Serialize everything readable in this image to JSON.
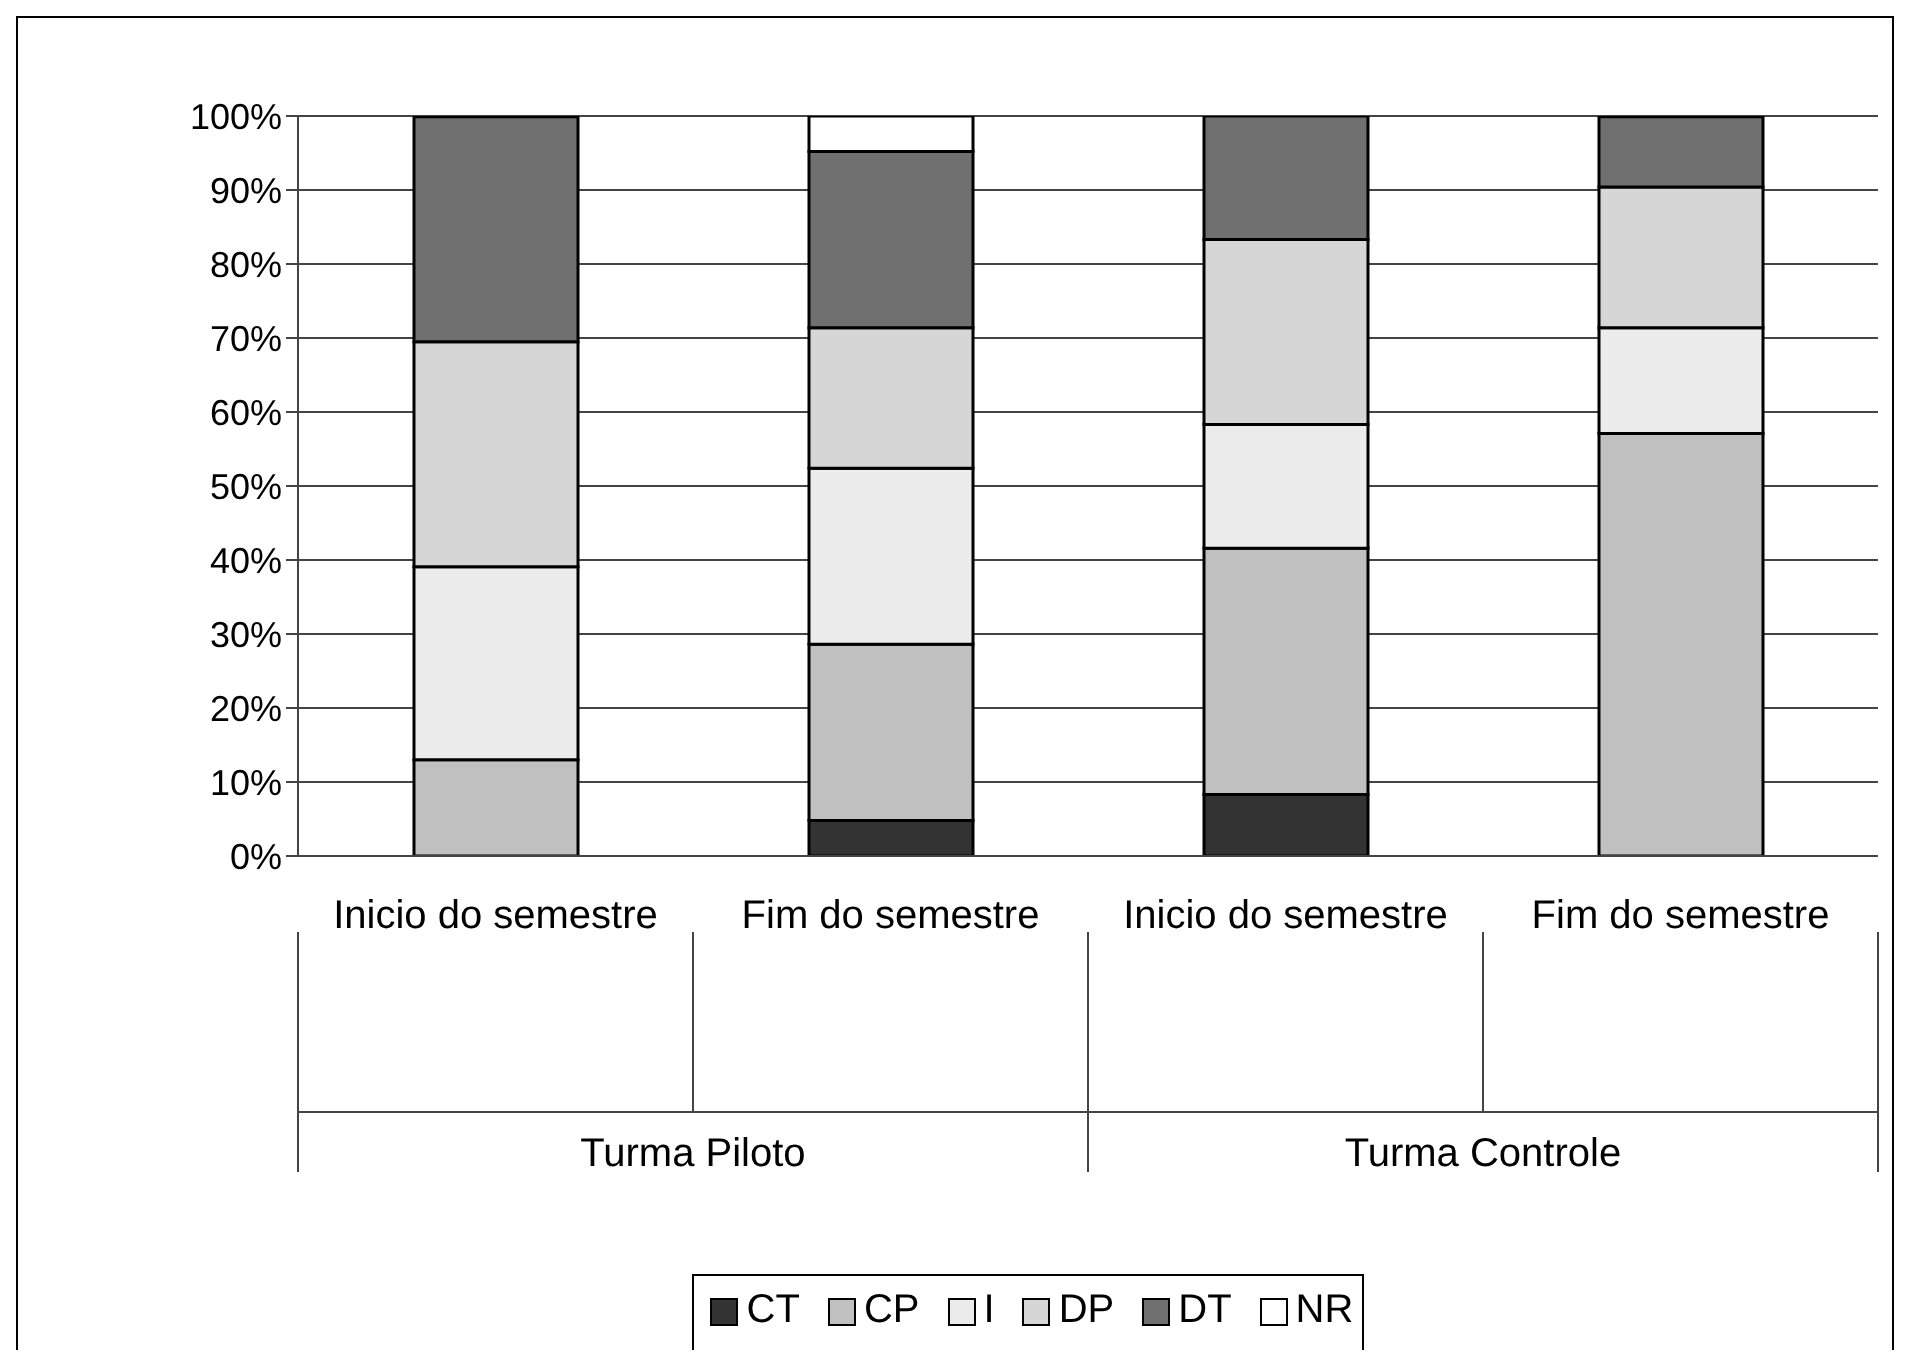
{
  "chart_data": {
    "type": "bar",
    "stacked": true,
    "categories": [
      "Inicio do semestre",
      "Fim do semestre",
      "Inicio do semestre",
      "Fim do semestre"
    ],
    "series": [
      {
        "name": "CT",
        "color": "#333333",
        "values": [
          0,
          4.8,
          8.3,
          0
        ]
      },
      {
        "name": "CP",
        "color": "#c0c0c0",
        "values": [
          13.0,
          23.8,
          33.3,
          57.1
        ]
      },
      {
        "name": "I",
        "color": "#ececec",
        "values": [
          26.1,
          23.8,
          16.7,
          14.3
        ]
      },
      {
        "name": "DP",
        "color": "#d6d6d6",
        "values": [
          30.4,
          19.0,
          25.0,
          19.0
        ]
      },
      {
        "name": "DT",
        "color": "#707070",
        "values": [
          30.4,
          23.8,
          16.7,
          9.5
        ]
      },
      {
        "name": "NR",
        "color": "#ffffff",
        "values": [
          0,
          4.8,
          0,
          0
        ]
      }
    ],
    "ylim": [
      0,
      100
    ],
    "yticks": [
      {
        "value": 0,
        "label": "0%"
      },
      {
        "value": 10,
        "label": "10%"
      },
      {
        "value": 20,
        "label": "20%"
      },
      {
        "value": 30,
        "label": "30%"
      },
      {
        "value": 40,
        "label": "40%"
      },
      {
        "value": 50,
        "label": "50%"
      },
      {
        "value": 60,
        "label": "60%"
      },
      {
        "value": 70,
        "label": "70%"
      },
      {
        "value": 80,
        "label": "80%"
      },
      {
        "value": 90,
        "label": "90%"
      },
      {
        "value": 100,
        "label": "100%"
      }
    ],
    "grid": "y",
    "legend": "bottom",
    "annotations": [
      "Turma Piloto",
      "Turma Controle"
    ]
  }
}
